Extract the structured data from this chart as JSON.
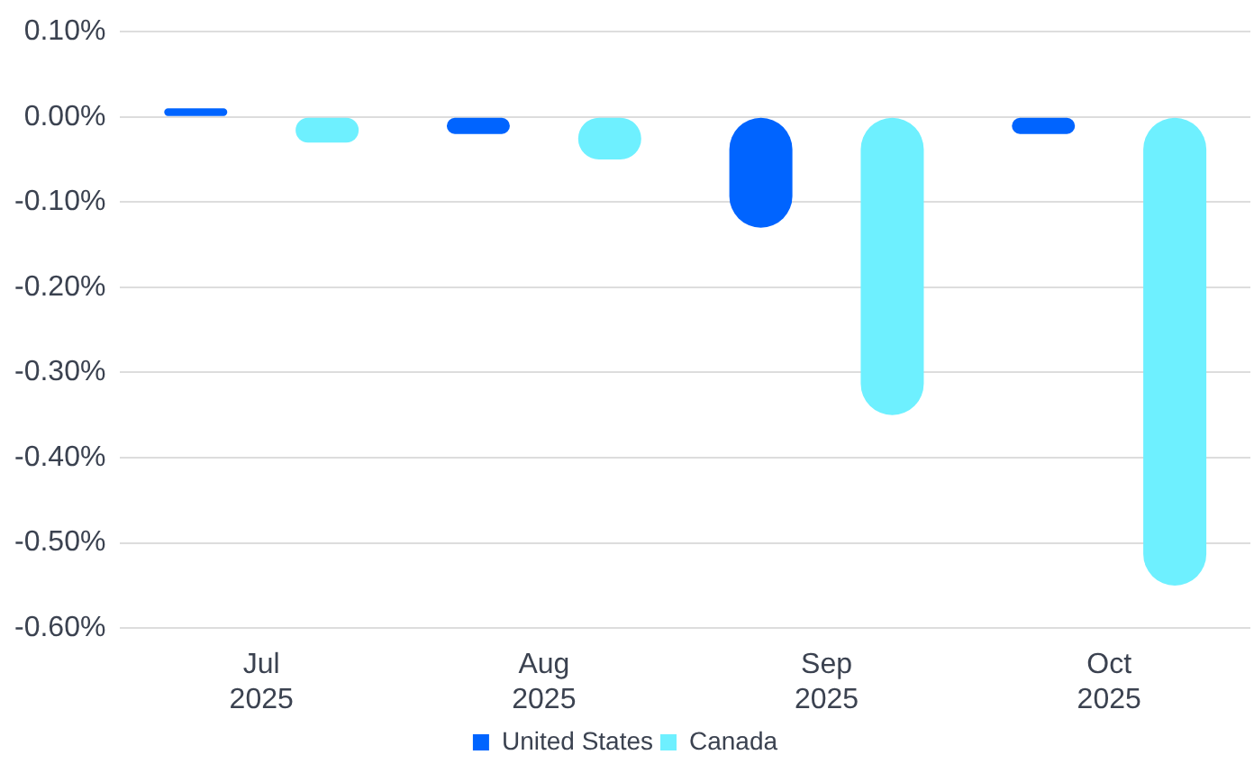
{
  "chart_data": {
    "type": "bar",
    "categories": [
      "Jul 2025",
      "Aug 2025",
      "Sep 2025",
      "Oct 2025"
    ],
    "series": [
      {
        "name": "United States",
        "color": "#0064ff",
        "values": [
          0.01,
          -0.02,
          -0.13,
          -0.02
        ]
      },
      {
        "name": "Canada",
        "color": "#6ef0ff",
        "values": [
          -0.03,
          -0.05,
          -0.35,
          -0.55
        ]
      }
    ],
    "ylim": [
      -0.6,
      0.1
    ],
    "yticks": [
      {
        "value": 0.1,
        "label": "0.10%"
      },
      {
        "value": 0,
        "label": "0.00%"
      },
      {
        "value": -0.1,
        "label": "-0.10%"
      },
      {
        "value": -0.2,
        "label": "-0.20%"
      },
      {
        "value": -0.3,
        "label": "-0.30%"
      },
      {
        "value": -0.4,
        "label": "-0.40%"
      },
      {
        "value": -0.5,
        "label": "-0.50%"
      },
      {
        "value": -0.6,
        "label": "-0.60%"
      }
    ],
    "grid": "y",
    "legend": "bottom"
  }
}
